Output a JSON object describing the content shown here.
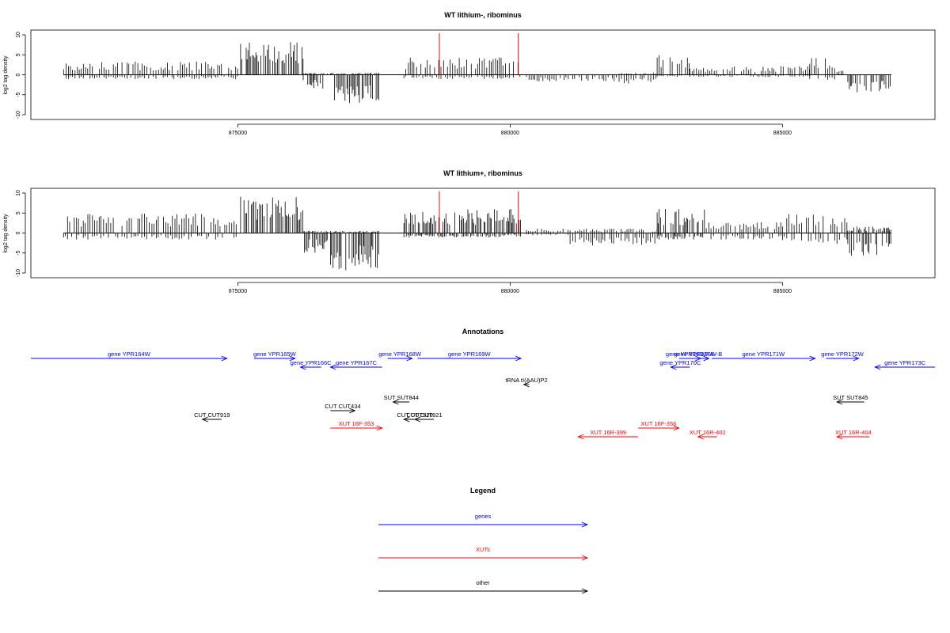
{
  "colors": {
    "genes": "#0000ff",
    "xuts": "#ff0000",
    "other": "#000000",
    "marker": "#ff0000"
  },
  "chart_data": [
    {
      "type": "bar",
      "title": "WT lithium-, ribominus",
      "ylabel": "log2 tag density",
      "xlim": [
        871200,
        887800
      ],
      "ylim": [
        -10,
        10
      ],
      "yticks": [
        10,
        5,
        0,
        -5,
        -10
      ],
      "xticks": [
        875000,
        880000,
        885000
      ],
      "xtick_labels": [
        "875000",
        "880000",
        "885000"
      ],
      "grid": false,
      "marker_positions": [
        878700,
        880150
      ],
      "marker_value": 10.4,
      "coverage_blocks": [
        {
          "start": 871800,
          "end": 875000,
          "top": 3.0,
          "bottom": -1.0
        },
        {
          "start": 875050,
          "end": 876200,
          "top": 7.5,
          "bottom": 0
        },
        {
          "start": 876200,
          "end": 876650,
          "top": 0.5,
          "bottom": -3.5
        },
        {
          "start": 876700,
          "end": 877600,
          "top": 0.5,
          "bottom": -6.5
        },
        {
          "start": 878050,
          "end": 880200,
          "top": 4.0,
          "bottom": -1.0
        },
        {
          "start": 880300,
          "end": 882000,
          "top": 0.3,
          "bottom": -1.5
        },
        {
          "start": 882000,
          "end": 882700,
          "top": 0.5,
          "bottom": -2.0
        },
        {
          "start": 882700,
          "end": 883300,
          "top": 4.5,
          "bottom": -0.5
        },
        {
          "start": 883300,
          "end": 885500,
          "top": 2.0,
          "bottom": -0.5
        },
        {
          "start": 885500,
          "end": 886000,
          "top": 4.0,
          "bottom": -1.5
        },
        {
          "start": 886000,
          "end": 886200,
          "top": 2.0,
          "bottom": 0
        },
        {
          "start": 886200,
          "end": 887000,
          "top": 0.3,
          "bottom": -4.0
        }
      ]
    },
    {
      "type": "bar",
      "title": "WT lithium+, ribominus",
      "ylabel": "log2 tag density",
      "xlim": [
        871200,
        887800
      ],
      "ylim": [
        -10,
        10
      ],
      "yticks": [
        10,
        5,
        0,
        -5,
        -10
      ],
      "xticks": [
        875000,
        880000,
        885000
      ],
      "xtick_labels": [
        "875000",
        "880000",
        "885000"
      ],
      "grid": false,
      "marker_positions": [
        878700,
        880150
      ],
      "marker_value": 10.4,
      "coverage_blocks": [
        {
          "start": 871800,
          "end": 875000,
          "top": 4.5,
          "bottom": -1.5
        },
        {
          "start": 875050,
          "end": 876200,
          "top": 8.5,
          "bottom": 0
        },
        {
          "start": 876200,
          "end": 876650,
          "top": 0.5,
          "bottom": -4.5
        },
        {
          "start": 876700,
          "end": 877600,
          "top": 0.5,
          "bottom": -8.5
        },
        {
          "start": 878050,
          "end": 880200,
          "top": 5.5,
          "bottom": -1.0
        },
        {
          "start": 880300,
          "end": 881100,
          "top": 1.0,
          "bottom": -0.5
        },
        {
          "start": 881100,
          "end": 882700,
          "top": 1.0,
          "bottom": -3.0
        },
        {
          "start": 882700,
          "end": 883600,
          "top": 5.5,
          "bottom": -1.5
        },
        {
          "start": 883600,
          "end": 885000,
          "top": 2.5,
          "bottom": -1.5
        },
        {
          "start": 885000,
          "end": 886200,
          "top": 4.5,
          "bottom": -2.5
        },
        {
          "start": 886200,
          "end": 887000,
          "top": 1.5,
          "bottom": -5.5
        }
      ]
    }
  ],
  "annotations": {
    "title": "Annotations",
    "items": [
      {
        "label": "gene YPR164W",
        "kind": "gene",
        "start": 871200,
        "end": 874800,
        "strand": "+",
        "row": 0
      },
      {
        "label": "gene YPR165W",
        "kind": "gene",
        "start": 875300,
        "end": 876050,
        "strand": "+",
        "row": 0
      },
      {
        "label": "gene YPR166C",
        "kind": "gene",
        "start": 876150,
        "end": 876530,
        "strand": "-",
        "row": 1
      },
      {
        "label": "gene YPR167C",
        "kind": "gene",
        "start": 876700,
        "end": 877650,
        "strand": "-",
        "row": 1
      },
      {
        "label": "gene YPR168W",
        "kind": "gene",
        "start": 877750,
        "end": 878200,
        "strand": "+",
        "row": 0
      },
      {
        "label": "gene YPR169W",
        "kind": "gene",
        "start": 878300,
        "end": 880200,
        "strand": "+",
        "row": 0
      },
      {
        "label": "gene YPR169W-A",
        "kind": "gene",
        "start": 883100,
        "end": 883500,
        "strand": "+",
        "row": 0
      },
      {
        "label": "gene YPR170C",
        "kind": "gene",
        "start": 882950,
        "end": 883300,
        "strand": "-",
        "row": 1
      },
      {
        "label": "gene YPR170W-B",
        "kind": "gene",
        "start": 883250,
        "end": 883650,
        "strand": "+",
        "row": 0
      },
      {
        "label": "gene YPR171W",
        "kind": "gene",
        "start": 883700,
        "end": 885600,
        "strand": "+",
        "row": 0
      },
      {
        "label": "gene YPR172W",
        "kind": "gene",
        "start": 885800,
        "end": 886400,
        "strand": "+",
        "row": 0
      },
      {
        "label": "gene YPR173C",
        "kind": "gene",
        "start": 886700,
        "end": 887800,
        "strand": "-",
        "row": 1
      },
      {
        "label": "tRNA tI(AAU)P2",
        "kind": "other",
        "start": 880250,
        "end": 880350,
        "strand": "-",
        "row": 3
      },
      {
        "label": "SUT SUT844",
        "kind": "other",
        "start": 877850,
        "end": 878150,
        "strand": "-",
        "row": 5
      },
      {
        "label": "CUT CUT434",
        "kind": "other",
        "start": 876700,
        "end": 877150,
        "strand": "+",
        "row": 6
      },
      {
        "label": "CUT CUT919",
        "kind": "other",
        "start": 874350,
        "end": 874700,
        "strand": "-",
        "row": 7
      },
      {
        "label": "CUT CUT920",
        "kind": "other",
        "start": 878050,
        "end": 878450,
        "strand": "-",
        "row": 7
      },
      {
        "label": "CUT CUT921",
        "kind": "other",
        "start": 878250,
        "end": 878600,
        "strand": "-",
        "row": 7
      },
      {
        "label": "XUT 16F-353",
        "kind": "xut",
        "start": 876700,
        "end": 877650,
        "strand": "+",
        "row": 8
      },
      {
        "label": "XUT 16R-399",
        "kind": "xut",
        "start": 881250,
        "end": 882350,
        "strand": "-",
        "row": 9
      },
      {
        "label": "XUT 16F-356",
        "kind": "xut",
        "start": 882350,
        "end": 883100,
        "strand": "+",
        "row": 8
      },
      {
        "label": "XUT 16R-402",
        "kind": "xut",
        "start": 883450,
        "end": 883800,
        "strand": "-",
        "row": 9
      },
      {
        "label": "SUT SUT845",
        "kind": "other",
        "start": 886000,
        "end": 886500,
        "strand": "-",
        "row": 5
      },
      {
        "label": "XUT 16R-404",
        "kind": "xut",
        "start": 886000,
        "end": 886600,
        "strand": "-",
        "row": 9
      }
    ]
  },
  "legend": {
    "title": "Legend",
    "items": [
      {
        "label": "genes",
        "kind": "gene"
      },
      {
        "label": "XUTs",
        "kind": "xut"
      },
      {
        "label": "other",
        "kind": "other"
      }
    ]
  }
}
